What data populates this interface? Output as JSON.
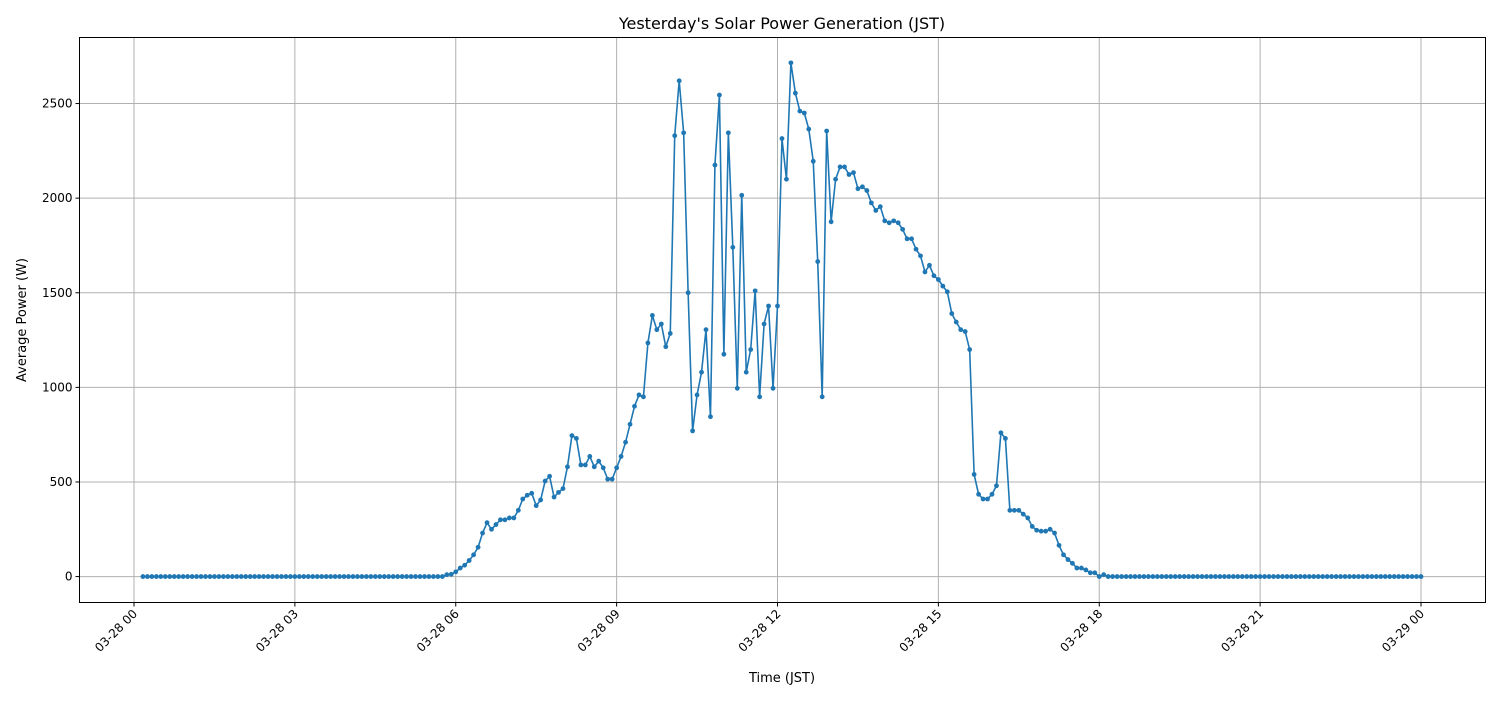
{
  "chart_data": {
    "type": "line",
    "title": "Yesterday's Solar Power Generation (JST)",
    "xlabel": "Time (JST)",
    "ylabel": "Average Power (W)",
    "grid": true,
    "marker": "circle",
    "color": "#1f77b4",
    "xlim": [
      "03-27 22:58",
      "03-29 01:12"
    ],
    "ylim": [
      -137,
      2849
    ],
    "x_ticks": [
      "03-28 00",
      "03-28 03",
      "03-28 06",
      "03-28 09",
      "03-28 12",
      "03-28 15",
      "03-28 18",
      "03-28 21",
      "03-29 00"
    ],
    "x_tick_hours": [
      0,
      3,
      6,
      9,
      12,
      15,
      18,
      21,
      24
    ],
    "y_ticks": [
      0,
      500,
      1000,
      1500,
      2000,
      2500
    ],
    "x": [
      "03-28 00:10",
      "03-28 00:15",
      "03-28 00:20",
      "03-28 00:25",
      "03-28 00:30",
      "03-28 00:35",
      "03-28 00:40",
      "03-28 00:45",
      "03-28 00:50",
      "03-28 00:55",
      "03-28 01:00",
      "03-28 01:05",
      "03-28 01:10",
      "03-28 01:15",
      "03-28 01:20",
      "03-28 01:25",
      "03-28 01:30",
      "03-28 01:35",
      "03-28 01:40",
      "03-28 01:45",
      "03-28 01:50",
      "03-28 01:55",
      "03-28 02:00",
      "03-28 02:05",
      "03-28 02:10",
      "03-28 02:15",
      "03-28 02:20",
      "03-28 02:25",
      "03-28 02:30",
      "03-28 02:35",
      "03-28 02:40",
      "03-28 02:45",
      "03-28 02:50",
      "03-28 02:55",
      "03-28 03:00",
      "03-28 03:05",
      "03-28 03:10",
      "03-28 03:15",
      "03-28 03:20",
      "03-28 03:25",
      "03-28 03:30",
      "03-28 03:35",
      "03-28 03:40",
      "03-28 03:45",
      "03-28 03:50",
      "03-28 03:55",
      "03-28 04:00",
      "03-28 04:05",
      "03-28 04:10",
      "03-28 04:15",
      "03-28 04:20",
      "03-28 04:25",
      "03-28 04:30",
      "03-28 04:35",
      "03-28 04:40",
      "03-28 04:45",
      "03-28 04:50",
      "03-28 04:55",
      "03-28 05:00",
      "03-28 05:05",
      "03-28 05:10",
      "03-28 05:15",
      "03-28 05:20",
      "03-28 05:25",
      "03-28 05:30",
      "03-28 05:35",
      "03-28 05:40",
      "03-28 05:45",
      "03-28 05:50",
      "03-28 05:55",
      "03-28 06:00",
      "03-28 06:05",
      "03-28 06:10",
      "03-28 06:15",
      "03-28 06:20",
      "03-28 06:25",
      "03-28 06:30",
      "03-28 06:35",
      "03-28 06:40",
      "03-28 06:45",
      "03-28 06:50",
      "03-28 06:55",
      "03-28 07:00",
      "03-28 07:05",
      "03-28 07:10",
      "03-28 07:15",
      "03-28 07:20",
      "03-28 07:25",
      "03-28 07:30",
      "03-28 07:35",
      "03-28 07:40",
      "03-28 07:45",
      "03-28 07:50",
      "03-28 07:55",
      "03-28 08:00",
      "03-28 08:05",
      "03-28 08:10",
      "03-28 08:15",
      "03-28 08:20",
      "03-28 08:25",
      "03-28 08:30",
      "03-28 08:35",
      "03-28 08:40",
      "03-28 08:45",
      "03-28 08:50",
      "03-28 08:55",
      "03-28 09:00",
      "03-28 09:05",
      "03-28 09:10",
      "03-28 09:15",
      "03-28 09:20",
      "03-28 09:25",
      "03-28 09:30",
      "03-28 09:35",
      "03-28 09:40",
      "03-28 09:45",
      "03-28 09:50",
      "03-28 09:55",
      "03-28 10:00",
      "03-28 10:05",
      "03-28 10:10",
      "03-28 10:15",
      "03-28 10:20",
      "03-28 10:25",
      "03-28 10:30",
      "03-28 10:35",
      "03-28 10:40",
      "03-28 10:45",
      "03-28 10:50",
      "03-28 10:55",
      "03-28 11:00",
      "03-28 11:05",
      "03-28 11:10",
      "03-28 11:15",
      "03-28 11:20",
      "03-28 11:25",
      "03-28 11:30",
      "03-28 11:35",
      "03-28 11:40",
      "03-28 11:45",
      "03-28 11:50",
      "03-28 11:55",
      "03-28 12:00",
      "03-28 12:05",
      "03-28 12:10",
      "03-28 12:15",
      "03-28 12:20",
      "03-28 12:25",
      "03-28 12:30",
      "03-28 12:35",
      "03-28 12:40",
      "03-28 12:45",
      "03-28 12:50",
      "03-28 12:55",
      "03-28 13:00",
      "03-28 13:05",
      "03-28 13:10",
      "03-28 13:15",
      "03-28 13:20",
      "03-28 13:25",
      "03-28 13:30",
      "03-28 13:35",
      "03-28 13:40",
      "03-28 13:45",
      "03-28 13:50",
      "03-28 13:55",
      "03-28 14:00",
      "03-28 14:05",
      "03-28 14:10",
      "03-28 14:15",
      "03-28 14:20",
      "03-28 14:25",
      "03-28 14:30",
      "03-28 14:35",
      "03-28 14:40",
      "03-28 14:45",
      "03-28 14:50",
      "03-28 14:55",
      "03-28 15:00",
      "03-28 15:05",
      "03-28 15:10",
      "03-28 15:15",
      "03-28 15:20",
      "03-28 15:25",
      "03-28 15:30",
      "03-28 15:35",
      "03-28 15:40",
      "03-28 15:45",
      "03-28 15:50",
      "03-28 15:55",
      "03-28 16:00",
      "03-28 16:05",
      "03-28 16:10",
      "03-28 16:15",
      "03-28 16:20",
      "03-28 16:25",
      "03-28 16:30",
      "03-28 16:35",
      "03-28 16:40",
      "03-28 16:45",
      "03-28 16:50",
      "03-28 16:55",
      "03-28 17:00",
      "03-28 17:05",
      "03-28 17:10",
      "03-28 17:15",
      "03-28 17:20",
      "03-28 17:25",
      "03-28 17:30",
      "03-28 17:35",
      "03-28 17:40",
      "03-28 17:45",
      "03-28 17:50",
      "03-28 17:55",
      "03-28 18:00",
      "03-28 18:05",
      "03-28 18:10",
      "03-28 18:15",
      "03-28 18:20",
      "03-28 18:25",
      "03-28 18:30",
      "03-28 18:35",
      "03-28 18:40",
      "03-28 18:45",
      "03-28 18:50",
      "03-28 18:55",
      "03-28 19:00",
      "03-28 19:05",
      "03-28 19:10",
      "03-28 19:15",
      "03-28 19:20",
      "03-28 19:25",
      "03-28 19:30",
      "03-28 19:35",
      "03-28 19:40",
      "03-28 19:45",
      "03-28 19:50",
      "03-28 19:55",
      "03-28 20:00",
      "03-28 20:05",
      "03-28 20:10",
      "03-28 20:15",
      "03-28 20:20",
      "03-28 20:25",
      "03-28 20:30",
      "03-28 20:35",
      "03-28 20:40",
      "03-28 20:45",
      "03-28 20:50",
      "03-28 20:55",
      "03-28 21:00",
      "03-28 21:05",
      "03-28 21:10",
      "03-28 21:15",
      "03-28 21:20",
      "03-28 21:25",
      "03-28 21:30",
      "03-28 21:35",
      "03-28 21:40",
      "03-28 21:45",
      "03-28 21:50",
      "03-28 21:55",
      "03-28 22:00",
      "03-28 22:05",
      "03-28 22:10",
      "03-28 22:15",
      "03-28 22:20",
      "03-28 22:25",
      "03-28 22:30",
      "03-28 22:35",
      "03-28 22:40",
      "03-28 22:45",
      "03-28 22:50",
      "03-28 22:55",
      "03-28 23:00",
      "03-28 23:05",
      "03-28 23:10",
      "03-28 23:15",
      "03-28 23:20",
      "03-28 23:25",
      "03-28 23:30",
      "03-28 23:35",
      "03-28 23:40",
      "03-28 23:45",
      "03-28 23:50",
      "03-28 23:55",
      "03-29 00:00"
    ],
    "y": [
      0,
      0,
      0,
      0,
      0,
      0,
      0,
      0,
      0,
      0,
      0,
      0,
      0,
      0,
      0,
      0,
      0,
      0,
      0,
      0,
      0,
      0,
      0,
      0,
      0,
      0,
      0,
      0,
      0,
      0,
      0,
      0,
      0,
      0,
      0,
      0,
      0,
      0,
      0,
      0,
      0,
      0,
      0,
      0,
      0,
      0,
      0,
      0,
      0,
      0,
      0,
      0,
      0,
      0,
      0,
      0,
      0,
      0,
      0,
      0,
      0,
      0,
      0,
      0,
      0,
      0,
      0,
      0,
      10,
      12,
      25,
      45,
      60,
      85,
      115,
      155,
      230,
      285,
      250,
      275,
      300,
      300,
      310,
      310,
      350,
      410,
      430,
      440,
      375,
      405,
      505,
      530,
      420,
      445,
      465,
      580,
      745,
      730,
      590,
      590,
      635,
      580,
      610,
      575,
      515,
      515,
      575,
      635,
      710,
      805,
      900,
      960,
      950,
      1235,
      1380,
      1305,
      1335,
      1215,
      1285,
      2330,
      2620,
      2345,
      1500,
      770,
      960,
      1080,
      1305,
      845,
      2175,
      2545,
      1175,
      2345,
      1740,
      995,
      2015,
      1080,
      1200,
      1510,
      950,
      1335,
      1430,
      995,
      1430,
      2315,
      2100,
      2715,
      2555,
      2460,
      2450,
      2365,
      2195,
      1665,
      950,
      2355,
      1875,
      2100,
      2165,
      2165,
      2125,
      2135,
      2050,
      2060,
      2040,
      1975,
      1935,
      1955,
      1880,
      1870,
      1880,
      1870,
      1835,
      1785,
      1785,
      1730,
      1695,
      1610,
      1645,
      1590,
      1570,
      1535,
      1505,
      1390,
      1345,
      1305,
      1295,
      1200,
      540,
      435,
      410,
      410,
      435,
      480,
      760,
      730,
      350,
      350,
      350,
      330,
      310,
      265,
      245,
      240,
      240,
      250,
      230,
      165,
      115,
      90,
      70,
      45,
      45,
      35,
      20,
      20,
      0,
      10,
      0,
      0,
      0,
      0,
      0,
      0,
      0,
      0,
      0,
      0,
      0,
      0,
      0,
      0,
      0,
      0,
      0,
      0,
      0,
      0,
      0,
      0,
      0,
      0,
      0,
      0,
      0,
      0,
      0,
      0,
      0,
      0,
      0,
      0,
      0,
      0,
      0,
      0,
      0,
      0,
      0,
      0,
      0,
      0,
      0,
      0,
      0,
      0,
      0,
      0,
      0,
      0,
      0,
      0,
      0,
      0,
      0,
      0,
      0,
      0,
      0,
      0,
      0,
      0,
      0,
      0,
      0,
      0,
      0,
      0,
      0
    ]
  }
}
